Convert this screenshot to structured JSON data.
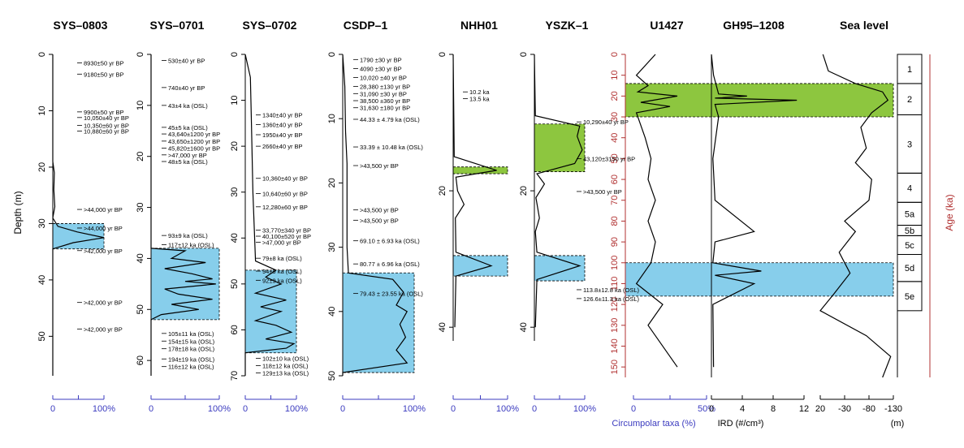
{
  "colors": {
    "blue": "#87ceeb",
    "green": "#8dc63f",
    "red": "#b03030",
    "axis_blue": "#3b3bbf",
    "line": "#000000"
  },
  "titles": {
    "sys0803": "SYS–0803",
    "sys0701": "SYS–0701",
    "sys0702": "SYS–0702",
    "csdp1": "CSDP–1",
    "nhh01": "NHH01",
    "yszk1": "YSZK–1",
    "u1427": "U1427",
    "gh95": "GH95–1208",
    "sealevel": "Sea level"
  },
  "labels": {
    "depth": "Depth (m)",
    "age": "Age (ka)",
    "circumpolar": "Circumpolar taxa (%)",
    "ird": "IRD (#/cm³)",
    "m": "(m)"
  },
  "chart_data": [
    {
      "type": "line",
      "title": "SYS–0803",
      "ylabel": "Depth (m)",
      "ylim": [
        0,
        57
      ],
      "yticks": [
        0,
        10,
        20,
        30,
        40,
        50
      ],
      "xlim": [
        0,
        100
      ],
      "xticks": [
        "0",
        "100%"
      ],
      "highlights": [
        {
          "color": "blue",
          "from": 30,
          "to": 34.5
        }
      ],
      "dates": [
        {
          "d": 1.5,
          "t": "8930±50 yr BP"
        },
        {
          "d": 3.5,
          "t": "9180±50 yr BP"
        },
        {
          "d": 10.2,
          "t": "9900±50 yr BP"
        },
        {
          "d": 11.2,
          "t": "10,050±40 yr BP"
        },
        {
          "d": 12.6,
          "t": "10,350±60 yr BP"
        },
        {
          "d": 13.6,
          "t": "10,880±60 yr BP"
        },
        {
          "d": 27.5,
          "t": ">44,000 yr BP"
        },
        {
          "d": 30.8,
          "t": ">44,000 yr BP"
        },
        {
          "d": 34.8,
          "t": ">42,000 yr BP"
        },
        {
          "d": 44,
          "t": ">42,000 yr BP"
        },
        {
          "d": 48.7,
          "t": ">42,000 yr BP"
        }
      ],
      "curve": [
        [
          0,
          0
        ],
        [
          0,
          19
        ],
        [
          3,
          21
        ],
        [
          2,
          24
        ],
        [
          4,
          27
        ],
        [
          0,
          29
        ],
        [
          10,
          30.5
        ],
        [
          48,
          31.5
        ],
        [
          100,
          32.5
        ],
        [
          40,
          33.4
        ],
        [
          0,
          34.5
        ],
        [
          0,
          57
        ]
      ]
    },
    {
      "type": "line",
      "title": "SYS–0701",
      "ylim": [
        0,
        63
      ],
      "yticks": [
        0,
        10,
        20,
        30,
        40,
        50,
        60
      ],
      "xlim": [
        0,
        100
      ],
      "xticks": [
        "0",
        "100%"
      ],
      "highlights": [
        {
          "color": "blue",
          "from": 38,
          "to": 52
        }
      ],
      "dates": [
        {
          "d": 1.2,
          "t": "530±40 yr BP"
        },
        {
          "d": 6.5,
          "t": "740±40 yr BP"
        },
        {
          "d": 10,
          "t": "43±4 ka (OSL)"
        },
        {
          "d": 14.3,
          "t": "45±5 ka (OSL)"
        },
        {
          "d": 15.6,
          "t": "43,640±1200 yr BP"
        },
        {
          "d": 17,
          "t": "43,650±1200 yr BP"
        },
        {
          "d": 18.4,
          "t": "45,820±1600 yr BP"
        },
        {
          "d": 19.7,
          "t": ">47,000 yr BP"
        },
        {
          "d": 21,
          "t": "48±5 ka (OSL)"
        },
        {
          "d": 35.5,
          "t": "93±9 ka (OSL)"
        },
        {
          "d": 37.3,
          "t": "117±12 ka (OSL)"
        },
        {
          "d": 54.7,
          "t": "105±11 ka (OSL)"
        },
        {
          "d": 56.2,
          "t": "154±15 ka (OSL)"
        },
        {
          "d": 57.7,
          "t": "178±18 ka (OSL)"
        },
        {
          "d": 59.7,
          "t": "194±19 ka (OSL)"
        },
        {
          "d": 61.2,
          "t": "116±12 ka (OSL)"
        }
      ],
      "curve": [
        [
          0,
          0
        ],
        [
          0,
          38
        ],
        [
          50,
          38.5
        ],
        [
          30,
          40
        ],
        [
          80,
          40.8
        ],
        [
          20,
          42
        ],
        [
          60,
          43
        ],
        [
          90,
          44
        ],
        [
          50,
          44.5
        ],
        [
          95,
          45
        ],
        [
          20,
          46
        ],
        [
          40,
          47
        ],
        [
          90,
          48
        ],
        [
          30,
          49
        ],
        [
          70,
          50
        ],
        [
          15,
          51
        ],
        [
          0,
          52
        ],
        [
          0,
          63
        ]
      ]
    },
    {
      "type": "line",
      "title": "SYS–0702",
      "ylim": [
        0,
        70
      ],
      "yticks": [
        0,
        10,
        20,
        30,
        40,
        50,
        60,
        70
      ],
      "xlim": [
        0,
        100
      ],
      "xticks": [
        "0",
        "100%"
      ],
      "highlights": [
        {
          "color": "blue",
          "from": 47,
          "to": 65
        }
      ],
      "dates": [
        {
          "d": 13.2,
          "t": "1340±40 yr BP"
        },
        {
          "d": 15.3,
          "t": "1360±40 yr BP"
        },
        {
          "d": 17.5,
          "t": "1950±40 yr BP"
        },
        {
          "d": 20,
          "t": "2660±40 yr BP"
        },
        {
          "d": 27,
          "t": "10,360±40 yr BP"
        },
        {
          "d": 30.3,
          "t": "10,640±60 yr BP"
        },
        {
          "d": 33.2,
          "t": "12,280±60 yr BP"
        },
        {
          "d": 38.3,
          "t": "33,770±340 yr BP"
        },
        {
          "d": 39.6,
          "t": "40,100±520 yr BP"
        },
        {
          "d": 40.9,
          "t": ">47,000 yr BP"
        },
        {
          "d": 44.4,
          "t": "79±8 ka (OSL)"
        },
        {
          "d": 47.2,
          "t": "94±9 ka (OSL)"
        },
        {
          "d": 49.2,
          "t": "92±9 ka (OSL)"
        },
        {
          "d": 66.2,
          "t": "102±10 ka (OSL)"
        },
        {
          "d": 67.8,
          "t": "118±12 ka (OSL)"
        },
        {
          "d": 69.4,
          "t": "129±13 ka (OSL)"
        }
      ],
      "curve": [
        [
          0,
          0
        ],
        [
          10,
          5
        ],
        [
          12,
          15
        ],
        [
          15,
          30
        ],
        [
          20,
          45
        ],
        [
          60,
          47
        ],
        [
          40,
          48.5
        ],
        [
          70,
          50
        ],
        [
          20,
          52
        ],
        [
          80,
          53.5
        ],
        [
          30,
          55
        ],
        [
          70,
          56
        ],
        [
          20,
          58
        ],
        [
          60,
          59
        ],
        [
          90,
          60.5
        ],
        [
          40,
          62
        ],
        [
          95,
          63
        ],
        [
          80,
          64
        ],
        [
          0,
          65
        ],
        [
          0,
          70
        ]
      ]
    },
    {
      "type": "line",
      "title": "CSDP–1",
      "ylim": [
        0,
        50
      ],
      "yticks": [
        0,
        10,
        20,
        30,
        40,
        50
      ],
      "xlim": [
        0,
        100
      ],
      "xticks": [
        "0",
        "100%"
      ],
      "highlights": [
        {
          "color": "blue",
          "from": 34,
          "to": 49.5
        }
      ],
      "dates": [
        {
          "d": 0.8,
          "t": "1790 ±30 yr BP"
        },
        {
          "d": 2.2,
          "t": "4090 ±30 yr BP"
        },
        {
          "d": 3.6,
          "t": "10,020 ±40 yr BP"
        },
        {
          "d": 5,
          "t": "28,380 ±130 yr BP"
        },
        {
          "d": 6.1,
          "t": "31,090 ±30 yr BP"
        },
        {
          "d": 7.2,
          "t": "38,500 ±360 yr BP"
        },
        {
          "d": 8.3,
          "t": "31,630 ±180 yr BP"
        },
        {
          "d": 10.1,
          "t": "44.33 ± 4.79 ka (OSL)"
        },
        {
          "d": 14.4,
          "t": "33.39 ± 10.48 ka (OSL)"
        },
        {
          "d": 17.3,
          "t": ">43,500 yr BP"
        },
        {
          "d": 24.2,
          "t": ">43,500 yr BP"
        },
        {
          "d": 25.8,
          "t": ">43,500 yr BP"
        },
        {
          "d": 29,
          "t": "69.10 ± 6.93 ka (OSL)"
        },
        {
          "d": 32.6,
          "t": "80.77 ± 6.96 ka (OSL)"
        },
        {
          "d": 37.2,
          "t": "79.43 ± 23.55 ka (OSL)"
        }
      ],
      "curve": [
        [
          0,
          0
        ],
        [
          3,
          5
        ],
        [
          4,
          12
        ],
        [
          6,
          17
        ],
        [
          6,
          30
        ],
        [
          8,
          34
        ],
        [
          70,
          35
        ],
        [
          85,
          37
        ],
        [
          75,
          39
        ],
        [
          90,
          40
        ],
        [
          80,
          42
        ],
        [
          88,
          44
        ],
        [
          75,
          46
        ],
        [
          90,
          48
        ],
        [
          0,
          49.5
        ],
        [
          0,
          50
        ]
      ]
    },
    {
      "type": "line",
      "title": "NHH01",
      "ylim": [
        0,
        42
      ],
      "yticks": [
        0,
        20,
        40
      ],
      "xlim": [
        0,
        100
      ],
      "xticks": [
        "0",
        "100%"
      ],
      "highlights": [
        {
          "color": "green",
          "from": 16.5,
          "to": 17.5
        },
        {
          "color": "blue",
          "from": 29.5,
          "to": 32.5
        }
      ],
      "dates": [
        {
          "d": 5.5,
          "t": "10.2 ka"
        },
        {
          "d": 6.5,
          "t": "13.5 ka"
        }
      ],
      "curve": [
        [
          0,
          0
        ],
        [
          2,
          15
        ],
        [
          80,
          17
        ],
        [
          5,
          18
        ],
        [
          8,
          20
        ],
        [
          20,
          22
        ],
        [
          4,
          24
        ],
        [
          5,
          29
        ],
        [
          70,
          31
        ],
        [
          5,
          32.5
        ],
        [
          3,
          40
        ]
      ]
    },
    {
      "type": "line",
      "title": "YSZK–1",
      "ylim": [
        0,
        42
      ],
      "yticks": [
        0,
        20,
        40
      ],
      "xlim": [
        0,
        100
      ],
      "xticks": [
        "0",
        "100%"
      ],
      "highlights": [
        {
          "color": "green",
          "from": 10.2,
          "to": 17.2
        },
        {
          "color": "blue",
          "from": 29.5,
          "to": 33.2
        }
      ],
      "dates": [
        {
          "d": 9.9,
          "t": "10,290±40 yr BP"
        },
        {
          "d": 15.3,
          "t": "43,120±3150 yr BP"
        },
        {
          "d": 20.1,
          "t": ">43,500 yr BP"
        },
        {
          "d": 34.5,
          "t": "113.8±12.8 ka (OSL)"
        },
        {
          "d": 35.8,
          "t": "126.6±11.3 ka (OSL)"
        }
      ],
      "curve": [
        [
          0,
          0
        ],
        [
          2,
          9
        ],
        [
          90,
          10.5
        ],
        [
          85,
          12
        ],
        [
          95,
          14
        ],
        [
          80,
          16
        ],
        [
          5,
          17.5
        ],
        [
          20,
          19
        ],
        [
          3,
          21
        ],
        [
          10,
          24
        ],
        [
          2,
          26
        ],
        [
          5,
          29
        ],
        [
          90,
          31
        ],
        [
          5,
          33
        ],
        [
          2,
          40
        ]
      ]
    },
    {
      "type": "line",
      "title": "U1427",
      "xlabel": "Circumpolar taxa (%)",
      "ylim": [
        0,
        155
      ],
      "yticks": [
        0,
        10,
        20,
        30,
        40,
        50,
        60,
        70,
        80,
        90,
        100,
        110,
        120,
        130,
        140,
        150
      ],
      "xlim": [
        0,
        50
      ],
      "xticks": [
        "0",
        "50%"
      ],
      "curve": [
        [
          15,
          0
        ],
        [
          2,
          10
        ],
        [
          10,
          15
        ],
        [
          3,
          18
        ],
        [
          30,
          20
        ],
        [
          5,
          23
        ],
        [
          25,
          25
        ],
        [
          2,
          28
        ],
        [
          4,
          32
        ],
        [
          8,
          40
        ],
        [
          12,
          50
        ],
        [
          10,
          60
        ],
        [
          15,
          70
        ],
        [
          10,
          80
        ],
        [
          15,
          90
        ],
        [
          12,
          100
        ],
        [
          2,
          110
        ],
        [
          20,
          120
        ],
        [
          10,
          130
        ],
        [
          30,
          150
        ]
      ]
    },
    {
      "type": "line",
      "title": "GH95–1208",
      "xlabel": "IRD (#/cm³)",
      "ylim": [
        0,
        155
      ],
      "xlim": [
        0,
        13
      ],
      "xticks": [
        "0",
        "4",
        "8",
        "12"
      ],
      "curve": [
        [
          0,
          0
        ],
        [
          0.3,
          10
        ],
        [
          1,
          19
        ],
        [
          5,
          20
        ],
        [
          0.5,
          21
        ],
        [
          12,
          22
        ],
        [
          0.5,
          24
        ],
        [
          1,
          30
        ],
        [
          0.2,
          50
        ],
        [
          0.5,
          70
        ],
        [
          6,
          85
        ],
        [
          0.5,
          90
        ],
        [
          0.2,
          100
        ],
        [
          7,
          104
        ],
        [
          0.5,
          106
        ],
        [
          6,
          110
        ],
        [
          0.2,
          120
        ],
        [
          0.3,
          150
        ]
      ]
    },
    {
      "type": "line",
      "title": "Sea level",
      "xlabel": "(m)",
      "ylabel": "Age (ka)",
      "ylim": [
        0,
        155
      ],
      "xlim": [
        20,
        -130
      ],
      "xticks": [
        "20",
        "-30",
        "-80",
        "-130"
      ],
      "highlights": [
        {
          "color": "green",
          "from": 14,
          "to": 30
        },
        {
          "color": "blue",
          "from": 100,
          "to": 116
        }
      ],
      "mis": [
        {
          "label": "1",
          "from": 0,
          "to": 14
        },
        {
          "label": "2",
          "from": 14,
          "to": 29
        },
        {
          "label": "3",
          "from": 29,
          "to": 57
        },
        {
          "label": "4",
          "from": 57,
          "to": 71
        },
        {
          "label": "5a",
          "from": 71,
          "to": 82
        },
        {
          "label": "5b",
          "from": 82,
          "to": 87
        },
        {
          "label": "5c",
          "from": 87,
          "to": 96
        },
        {
          "label": "5d",
          "from": 96,
          "to": 109
        },
        {
          "label": "5e",
          "from": 109,
          "to": 123
        }
      ],
      "curve": [
        [
          0,
          0
        ],
        [
          -10,
          8
        ],
        [
          -60,
          14
        ],
        [
          -110,
          18
        ],
        [
          -120,
          22
        ],
        [
          -90,
          28
        ],
        [
          -70,
          35
        ],
        [
          -80,
          45
        ],
        [
          -60,
          52
        ],
        [
          -90,
          60
        ],
        [
          -85,
          70
        ],
        [
          -40,
          80
        ],
        [
          -60,
          85
        ],
        [
          -30,
          95
        ],
        [
          -50,
          105
        ],
        [
          -20,
          115
        ],
        [
          5,
          123
        ],
        [
          -80,
          135
        ],
        [
          -125,
          145
        ],
        [
          -110,
          155
        ]
      ]
    }
  ]
}
